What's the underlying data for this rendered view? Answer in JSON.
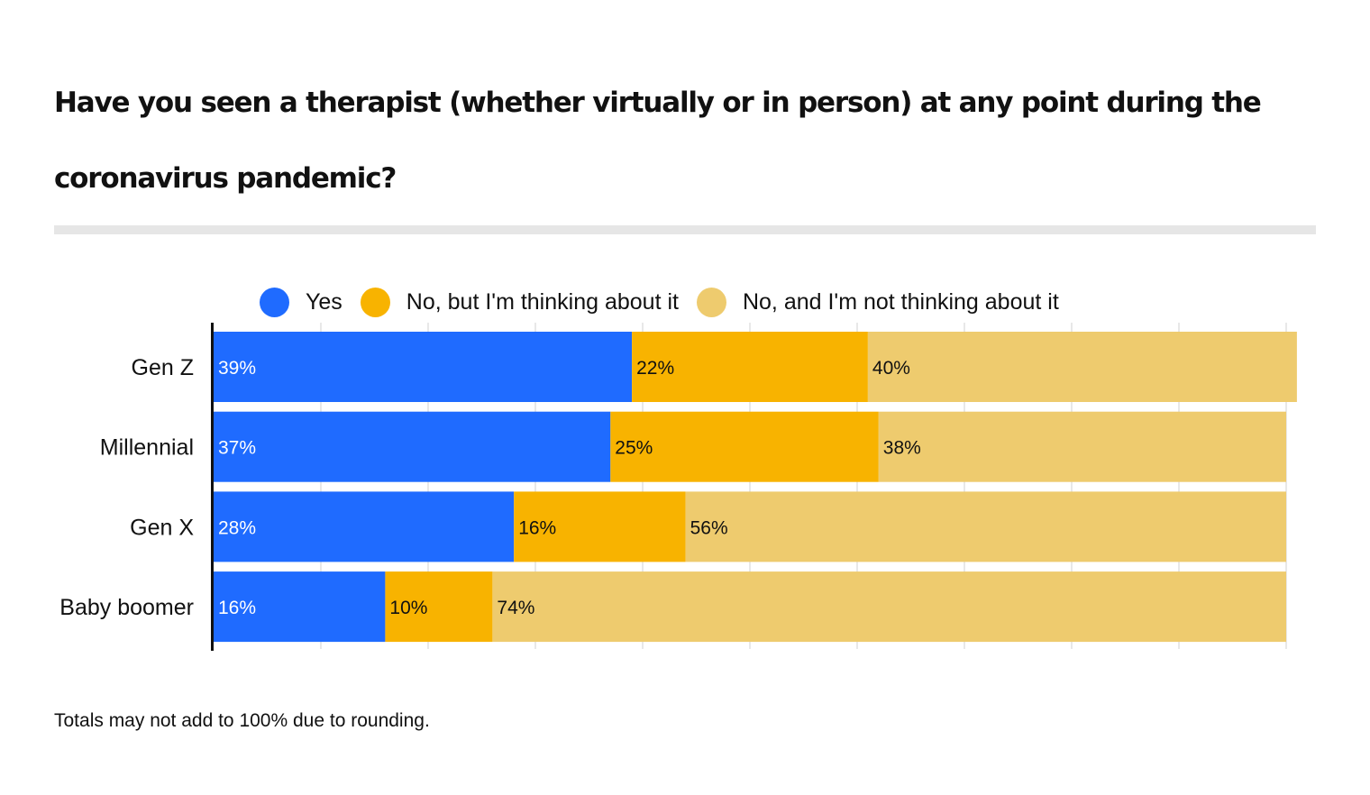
{
  "chart_data": {
    "type": "bar",
    "orientation": "horizontal",
    "stacked": true,
    "title": "Have you seen a therapist (whether virtually or in person) at any point during the coronavirus pandemic?",
    "categories": [
      "Gen Z",
      "Millennial",
      "Gen X",
      "Baby boomer"
    ],
    "series": [
      {
        "name": "Yes",
        "color": "#1f6bff",
        "label_color": "#ffffff",
        "values": [
          39,
          37,
          28,
          16
        ]
      },
      {
        "name": "No, but I'm thinking about it",
        "color": "#f8b300",
        "label_color": "#111111",
        "values": [
          22,
          25,
          16,
          10
        ]
      },
      {
        "name": "No, and I'm not thinking about it",
        "color": "#eecb6e",
        "label_color": "#111111",
        "values": [
          40,
          38,
          56,
          74
        ]
      }
    ],
    "value_suffix": "%",
    "xlim": [
      0,
      100
    ],
    "grid": true,
    "xlabel": "",
    "ylabel": "",
    "legend_position": "top",
    "footnote": "Totals may not add to 100% due to rounding."
  }
}
